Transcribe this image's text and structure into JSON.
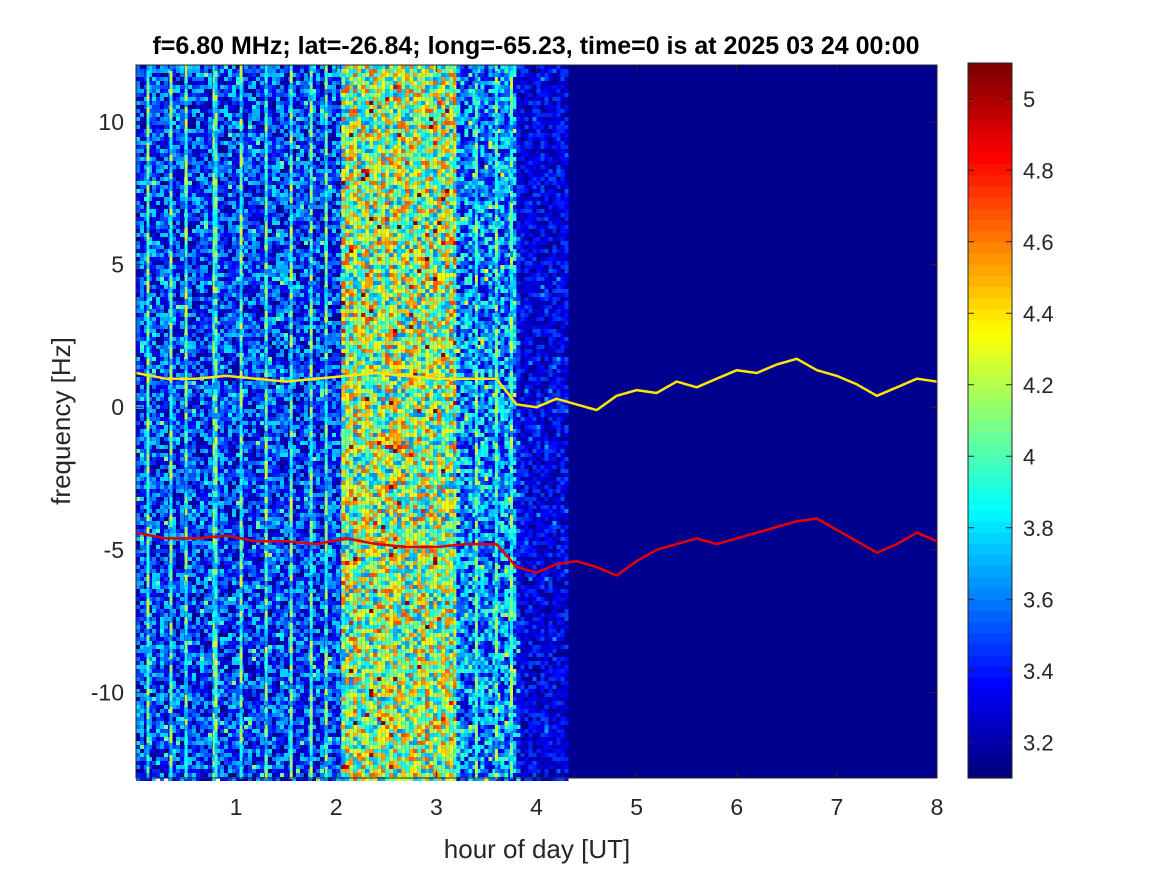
{
  "chart_data": {
    "type": "heatmap",
    "title": "f=6.80 MHz;  lat=-26.84; long=-65.23, time=0 is at 2025 03 24 00:00",
    "xlabel": "hour of day [UT]",
    "ylabel": "frequency [Hz]",
    "xlim": [
      0,
      8
    ],
    "ylim": [
      -13,
      12
    ],
    "xticks": [
      1,
      2,
      3,
      4,
      5,
      6,
      7,
      8
    ],
    "xtick_labels": [
      "1",
      "2",
      "3",
      "4",
      "5",
      "6",
      "7",
      "8"
    ],
    "yticks": [
      10,
      5,
      0,
      -5,
      -10
    ],
    "ytick_labels": [
      "10",
      "5",
      "0",
      "-5",
      "-10"
    ],
    "colormap": "jet",
    "colorbar": {
      "range": [
        3.1,
        5.1
      ],
      "ticks": [
        5,
        4.8,
        4.6,
        4.4,
        4.2,
        4,
        3.8,
        3.6,
        3.4,
        3.2
      ],
      "tick_labels": [
        "5",
        "4.8",
        "4.6",
        "4.4",
        "4.2",
        "4",
        "3.8",
        "3.6",
        "3.4",
        "3.2"
      ]
    },
    "background_level": 3.1,
    "noise_regions": [
      {
        "x_range": [
          0.0,
          2.05
        ],
        "mean_level": 3.45,
        "spread": 0.35
      },
      {
        "x_range": [
          2.05,
          3.2
        ],
        "mean_level": 4.15,
        "spread": 0.55
      },
      {
        "x_range": [
          3.2,
          3.8
        ],
        "mean_level": 3.6,
        "spread": 0.4
      },
      {
        "x_range": [
          3.8,
          4.3
        ],
        "mean_level": 3.3,
        "spread": 0.2
      }
    ],
    "vertical_streaks": [
      0.12,
      0.35,
      0.5,
      0.78,
      0.8,
      1.05,
      1.3,
      1.55,
      1.75,
      1.9,
      3.4,
      3.6,
      3.75
    ],
    "series": [
      {
        "level": 4.4,
        "x": [
          0.0,
          0.3,
          0.6,
          0.9,
          1.2,
          1.5,
          1.8,
          2.1,
          2.4,
          2.7,
          3.0,
          3.3,
          3.6,
          3.8,
          4.0,
          4.2,
          4.4,
          4.6,
          4.8,
          5.0,
          5.2,
          5.4,
          5.6,
          5.8,
          6.0,
          6.2,
          6.4,
          6.6,
          6.8,
          7.0,
          7.2,
          7.4,
          7.6,
          7.8,
          8.0
        ],
        "y": [
          1.2,
          1.0,
          1.0,
          1.1,
          1.0,
          0.9,
          1.0,
          1.1,
          1.2,
          1.1,
          1.0,
          1.0,
          1.0,
          0.1,
          0.0,
          0.3,
          0.1,
          -0.1,
          0.4,
          0.6,
          0.5,
          0.9,
          0.7,
          1.0,
          1.3,
          1.2,
          1.5,
          1.7,
          1.3,
          1.1,
          0.8,
          0.4,
          0.7,
          1.0,
          0.9
        ]
      },
      {
        "level": 4.9,
        "x": [
          0.0,
          0.3,
          0.6,
          0.9,
          1.2,
          1.5,
          1.8,
          2.1,
          2.4,
          2.7,
          3.0,
          3.3,
          3.6,
          3.8,
          4.0,
          4.2,
          4.4,
          4.6,
          4.8,
          5.0,
          5.2,
          5.4,
          5.6,
          5.8,
          6.0,
          6.2,
          6.4,
          6.6,
          6.8,
          7.0,
          7.2,
          7.4,
          7.6,
          7.8,
          8.0
        ],
        "y": [
          -4.4,
          -4.6,
          -4.6,
          -4.5,
          -4.7,
          -4.7,
          -4.8,
          -4.6,
          -4.8,
          -4.9,
          -4.9,
          -4.8,
          -4.8,
          -5.6,
          -5.8,
          -5.5,
          -5.4,
          -5.6,
          -5.9,
          -5.4,
          -5.0,
          -4.8,
          -4.6,
          -4.8,
          -4.6,
          -4.4,
          -4.2,
          -4.0,
          -3.9,
          -4.3,
          -4.7,
          -5.1,
          -4.8,
          -4.4,
          -4.7
        ]
      }
    ]
  }
}
